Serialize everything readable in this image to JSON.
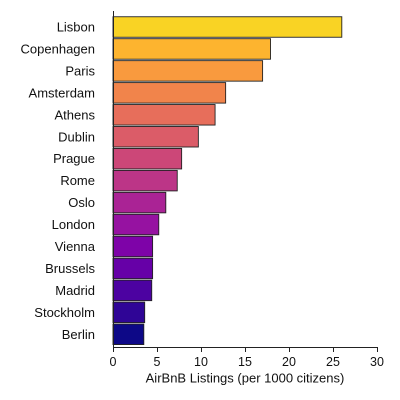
{
  "chart_data": {
    "type": "bar",
    "orientation": "horizontal",
    "categories": [
      "Lisbon",
      "Copenhagen",
      "Paris",
      "Amsterdam",
      "Athens",
      "Dublin",
      "Prague",
      "Rome",
      "Oslo",
      "London",
      "Vienna",
      "Brussels",
      "Madrid",
      "Stockholm",
      "Berlin"
    ],
    "values": [
      26.0,
      17.9,
      17.0,
      12.8,
      11.6,
      9.7,
      7.8,
      7.3,
      6.0,
      5.2,
      4.5,
      4.5,
      4.4,
      3.6,
      3.5
    ],
    "colors": [
      "#f9d324",
      "#fdb42f",
      "#f99a3e",
      "#f1844b",
      "#e76e5b",
      "#db5c68",
      "#cc4778",
      "#bc3587",
      "#aa2395",
      "#9612a1",
      "#7e03a8",
      "#6600a7",
      "#4c02a1",
      "#2f0596",
      "#0d0887"
    ],
    "title": "",
    "xlabel": "AirBnB Listings (per 1000 citizens)",
    "ylabel": "",
    "xlim": [
      0,
      30
    ],
    "xticks": [
      0,
      5,
      10,
      15,
      20,
      25,
      30
    ],
    "xtick_labels": [
      "0",
      "5",
      "10",
      "15",
      "20",
      "25",
      "30"
    ],
    "grid": false,
    "legend": "none"
  }
}
